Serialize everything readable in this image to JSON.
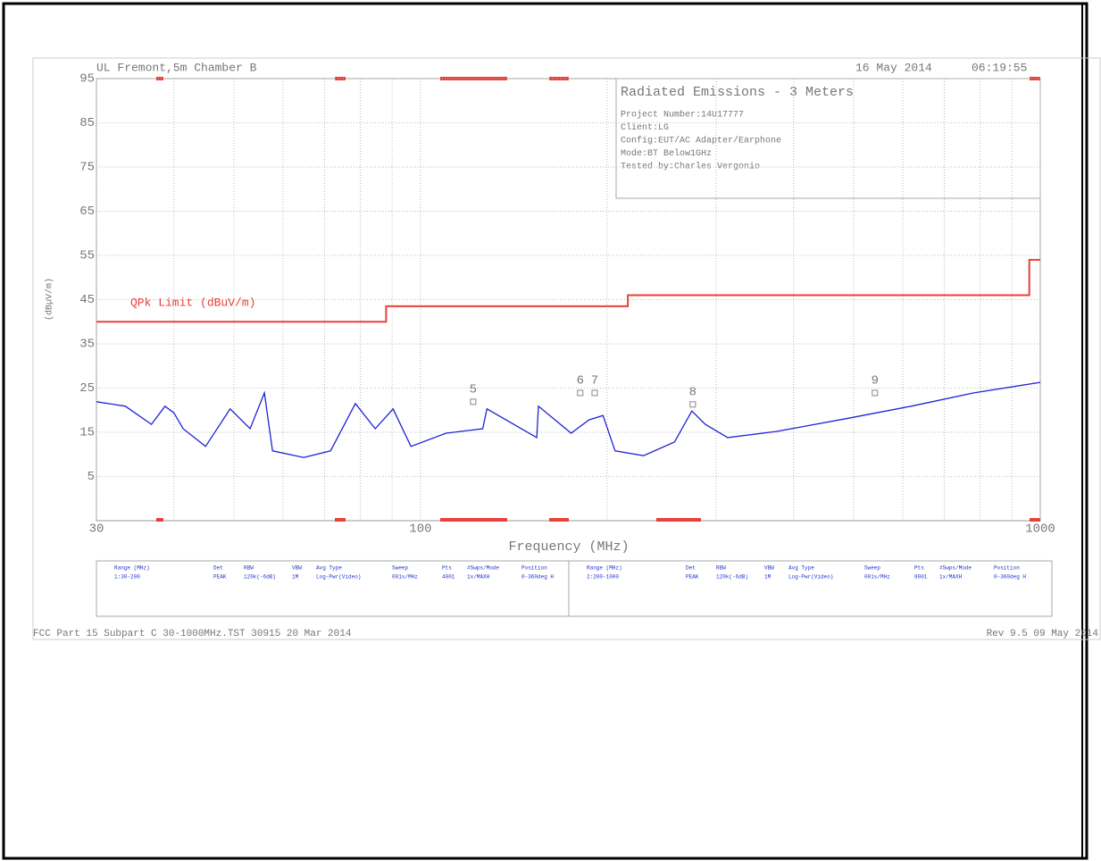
{
  "header": {
    "site": "UL Fremont,5m Chamber B",
    "date": "16 May 2014",
    "time": "06:19:55"
  },
  "info_box": {
    "title": "Radiated Emissions - 3 Meters",
    "lines": [
      "Project Number:14U17777",
      "Client:LG",
      "Config:EUT/AC Adapter/Earphone",
      "Mode:BT Below1GHz",
      "Tested by:Charles Vergonio"
    ]
  },
  "chart_data": {
    "type": "line",
    "xlabel": "Frequency (MHz)",
    "ylabel": "(dBµV/m)",
    "xlog": true,
    "xlim": [
      30,
      1000
    ],
    "xticks": [
      30,
      100,
      1000
    ],
    "xgrid_minor": [
      40,
      50,
      60,
      70,
      80,
      90,
      200,
      300,
      400,
      500,
      600,
      700,
      800,
      900
    ],
    "ylim": [
      -5,
      95
    ],
    "yticks": [
      5,
      15,
      25,
      35,
      45,
      55,
      65,
      75,
      85,
      95
    ],
    "grid": true,
    "limit": {
      "name": "QPk Limit (dBuV/m)",
      "color": "#e8403a",
      "x": [
        30,
        88,
        88,
        216,
        216,
        960,
        960,
        1000
      ],
      "values": [
        40,
        40,
        43.5,
        43.5,
        46,
        46,
        54,
        54
      ]
    },
    "series": [
      {
        "color": "#1f22d6",
        "x": [
          30,
          33.4,
          36.8,
          38.7,
          40,
          41.4,
          45,
          49.3,
          53.1,
          56,
          57.7,
          64.8,
          71.6,
          78.5,
          84.5,
          90.3,
          96.5,
          110,
          126,
          128,
          154,
          155,
          175,
          187,
          197,
          206,
          229,
          257,
          274,
          288,
          313,
          376,
          491,
          619,
          781,
          1000
        ],
        "values": [
          21.9,
          20.9,
          16.8,
          20.9,
          19.4,
          15.8,
          11.8,
          20.3,
          15.8,
          23.9,
          10.8,
          9.3,
          10.8,
          21.5,
          15.8,
          20.3,
          11.8,
          14.8,
          15.8,
          20.3,
          13.8,
          20.9,
          14.8,
          17.8,
          18.8,
          10.8,
          9.7,
          12.8,
          19.8,
          16.8,
          13.8,
          15.2,
          18.2,
          20.9,
          23.9,
          26.3
        ]
      }
    ],
    "markers": [
      {
        "label": "5",
        "x": 121.6,
        "value": 21.9
      },
      {
        "label": "6",
        "x": 181,
        "value": 23.9
      },
      {
        "label": "7",
        "x": 191,
        "value": 23.9
      },
      {
        "label": "8",
        "x": 275,
        "value": 21.3
      },
      {
        "label": "9",
        "x": 541,
        "value": 23.9
      }
    ]
  },
  "table": {
    "columns": [
      "Range (MHz)",
      "Det",
      "RBW",
      "VBW",
      "Avg Type",
      "Sweep",
      "Pts",
      "#Swps/Mode",
      "Position"
    ],
    "rows": [
      [
        "1:30-200",
        "PEAK",
        "120k(-6dB)",
        "1M",
        "Log-Pwr(Video)",
        "001s/MHz",
        "4001",
        "1x/MAXH",
        "0-360deg H"
      ],
      [
        "2:200-1000",
        "PEAK",
        "120k(-6dB)",
        "1M",
        "Log-Pwr(Video)",
        "001s/MHz",
        "8001",
        "1x/MAXH",
        "0-360deg H"
      ]
    ]
  },
  "footer": {
    "left": "FCC Part 15 Subpart C 30-1000MHz.TST 30915 20 Mar 2014",
    "right": "Rev 9.5 09 May 2014"
  }
}
